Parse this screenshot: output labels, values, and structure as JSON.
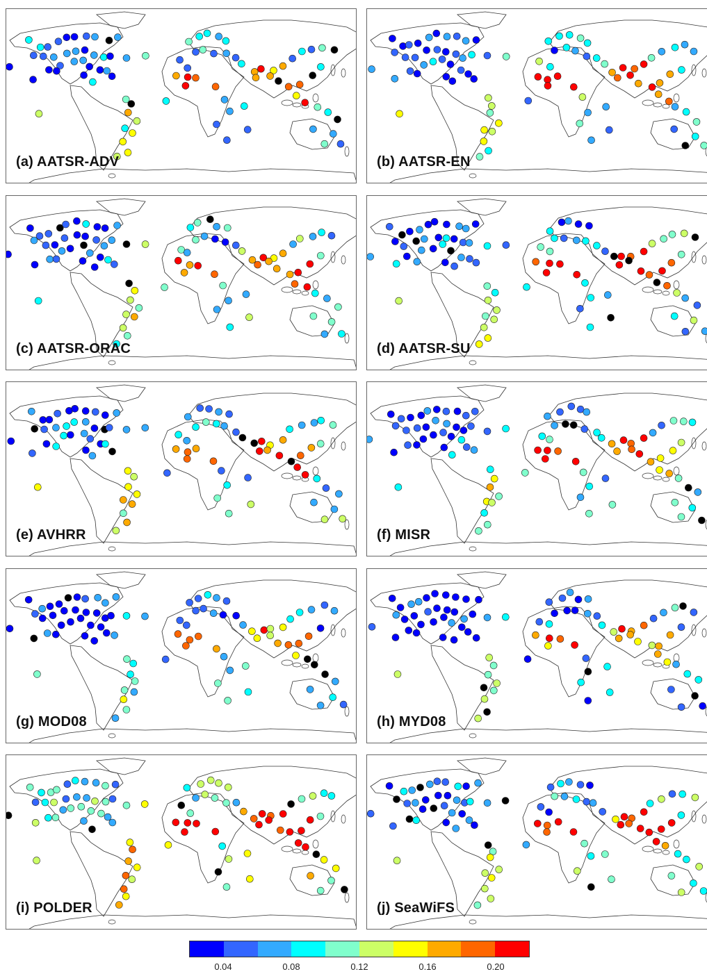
{
  "panels": [
    {
      "label": "(a) AATSR-ADV"
    },
    {
      "label": "(b) AATSR-EN"
    },
    {
      "label": "(c) AATSR-ORAC"
    },
    {
      "label": "(d) AATSR-SU"
    },
    {
      "label": "(e) AVHRR"
    },
    {
      "label": "(f) MISR"
    },
    {
      "label": "(g) MOD08"
    },
    {
      "label": "(h) MYD08"
    },
    {
      "label": "(i) POLDER"
    },
    {
      "label": "(j) SeaWiFS"
    }
  ],
  "colorbar": {
    "colors": [
      "#0000ff",
      "#3366ff",
      "#33aaff",
      "#00ffff",
      "#80ffcc",
      "#ccff66",
      "#ffff00",
      "#ffaa00",
      "#ff6600",
      "#ff0000"
    ],
    "ticks": [
      {
        "label": "0.04",
        "index": 1
      },
      {
        "label": "0.08",
        "index": 3
      },
      {
        "label": "0.12",
        "index": 5
      },
      {
        "label": "0.16",
        "index": 7
      },
      {
        "label": "0.20",
        "index": 9
      }
    ]
  },
  "missing_color": "#000000"
}
